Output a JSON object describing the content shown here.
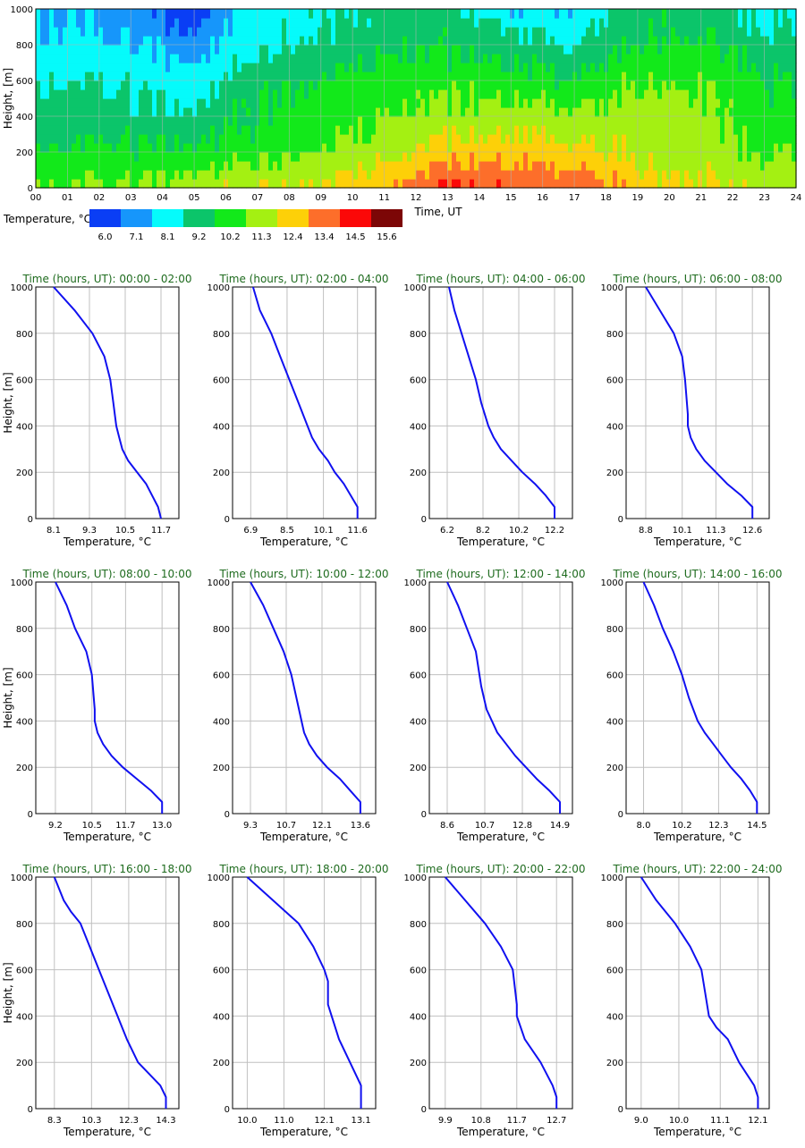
{
  "heatmap": {
    "ylabel": "Height, [m]",
    "xlabel": "Time, UT",
    "y_ticks": [
      "0",
      "200",
      "400",
      "600",
      "800",
      "1000"
    ],
    "x_ticks": [
      "00",
      "01",
      "02",
      "03",
      "04",
      "05",
      "06",
      "07",
      "08",
      "09",
      "10",
      "11",
      "12",
      "13",
      "14",
      "15",
      "16",
      "17",
      "18",
      "19",
      "20",
      "21",
      "22",
      "23",
      "24"
    ],
    "legend_label": "Temperature, °C",
    "legend_values": [
      "6.0",
      "7.1",
      "8.1",
      "9.2",
      "10.2",
      "11.3",
      "12.4",
      "13.4",
      "14.5",
      "15.6"
    ],
    "colors": [
      "#0a3ef5",
      "#1696fb",
      "#05fbfb",
      "#0bc56a",
      "#12e91a",
      "#a4f012",
      "#fdd008",
      "#fd6e2a",
      "#fb0808",
      "#7c0606"
    ]
  },
  "profile_common": {
    "ylabel": "Height, [m]",
    "xlabel": "Temperature, °C",
    "y_ticks": [
      "0",
      "200",
      "400",
      "600",
      "800",
      "1000"
    ],
    "title_prefix": "Time (hours, UT): "
  },
  "chart_data": [
    {
      "type": "heatmap",
      "title": "",
      "xlabel": "Time, UT",
      "ylabel": "Height, [m]",
      "xlim": [
        0,
        24
      ],
      "ylim": [
        0,
        1000
      ],
      "colorbar_label": "Temperature, °C",
      "colorbar_levels": [
        6.0,
        7.1,
        8.1,
        9.2,
        10.2,
        11.3,
        12.4,
        13.4,
        14.5,
        15.6
      ],
      "times": [
        "00",
        "02",
        "04",
        "06",
        "08",
        "10",
        "12",
        "14",
        "16",
        "18",
        "20",
        "22"
      ],
      "heights": [
        0,
        100,
        200,
        300,
        400,
        500,
        600,
        700,
        800,
        900,
        1000
      ],
      "values": [
        [
          11.5,
          11.0,
          10.5,
          10.0,
          9.8,
          9.6,
          9.2,
          8.8,
          8.4,
          8.2,
          8.2
        ],
        [
          11.5,
          11.0,
          10.5,
          10.0,
          9.6,
          9.3,
          9.0,
          8.6,
          8.2,
          7.8,
          7.5
        ],
        [
          12.0,
          11.3,
          10.5,
          9.8,
          9.4,
          9.0,
          8.6,
          8.1,
          7.6,
          7.0,
          6.6
        ],
        [
          12.4,
          11.6,
          11.0,
          10.5,
          10.3,
          10.3,
          10.0,
          9.4,
          9.0,
          8.8,
          8.8
        ],
        [
          12.8,
          12.0,
          11.4,
          11.0,
          10.7,
          10.6,
          10.4,
          9.8,
          9.5,
          9.3,
          9.3
        ],
        [
          13.3,
          12.6,
          12.0,
          11.6,
          11.3,
          11.0,
          10.7,
          10.3,
          9.9,
          9.6,
          9.4
        ],
        [
          14.6,
          13.6,
          12.9,
          12.2,
          11.6,
          11.2,
          10.9,
          10.4,
          10.0,
          9.8,
          9.6
        ],
        [
          14.4,
          13.6,
          13.0,
          12.4,
          11.9,
          11.3,
          10.8,
          10.2,
          9.6,
          9.3,
          8.0
        ],
        [
          14.2,
          13.5,
          12.8,
          12.2,
          11.6,
          11.0,
          10.4,
          9.8,
          9.2,
          8.8,
          8.3
        ],
        [
          13.0,
          12.6,
          12.1,
          12.0,
          11.9,
          11.7,
          11.2,
          10.7,
          10.3,
          10.1,
          10.0
        ],
        [
          12.6,
          12.3,
          11.8,
          11.7,
          11.6,
          11.5,
          11.2,
          10.9,
          10.4,
          10.0,
          9.9
        ],
        [
          12.0,
          11.6,
          11.2,
          10.9,
          10.6,
          10.5,
          10.3,
          9.9,
          9.5,
          9.2,
          9.0
        ]
      ]
    },
    {
      "type": "line",
      "title": "Time (hours, UT): 00:00 - 02:00",
      "xlabel": "Temperature, °C",
      "ylabel": "Height, [m]",
      "x_ticks": [
        8.1,
        9.3,
        10.5,
        11.7
      ],
      "xlim": [
        7.5,
        12.3
      ],
      "ylim": [
        0,
        1000
      ],
      "series": [
        {
          "x": [
            11.7,
            11.6,
            11.4,
            11.2,
            10.9,
            10.6,
            10.4,
            10.3,
            10.2,
            10.1,
            10.0,
            9.8,
            9.4,
            8.8,
            8.1
          ],
          "y": [
            0,
            50,
            100,
            150,
            200,
            250,
            300,
            350,
            400,
            500,
            600,
            700,
            800,
            900,
            1000
          ]
        }
      ]
    },
    {
      "type": "line",
      "title": "Time (hours, UT): 02:00 - 04:00",
      "xlabel": "Temperature, °C",
      "ylabel": "Height, [m]",
      "x_ticks": [
        6.9,
        8.5,
        10.1,
        11.6
      ],
      "xlim": [
        6.1,
        12.4
      ],
      "ylim": [
        0,
        1000
      ],
      "series": [
        {
          "x": [
            11.6,
            11.6,
            11.3,
            11.0,
            10.6,
            10.3,
            9.9,
            9.6,
            9.4,
            9.0,
            8.6,
            8.2,
            7.8,
            7.3,
            7.0
          ],
          "y": [
            0,
            50,
            100,
            150,
            200,
            250,
            300,
            350,
            400,
            500,
            600,
            700,
            800,
            900,
            1000
          ]
        }
      ]
    },
    {
      "type": "line",
      "title": "Time (hours, UT): 04:00 - 06:00",
      "xlabel": "Temperature, °C",
      "ylabel": "Height, [m]",
      "x_ticks": [
        6.2,
        8.2,
        10.2,
        12.2
      ],
      "xlim": [
        5.2,
        13.2
      ],
      "ylim": [
        0,
        1000
      ],
      "series": [
        {
          "x": [
            12.2,
            12.2,
            11.7,
            11.1,
            10.4,
            9.8,
            9.2,
            8.8,
            8.5,
            8.1,
            7.8,
            7.4,
            7.0,
            6.6,
            6.3
          ],
          "y": [
            0,
            50,
            100,
            150,
            200,
            250,
            300,
            350,
            400,
            500,
            600,
            700,
            800,
            900,
            1000
          ]
        }
      ]
    },
    {
      "type": "line",
      "title": "Time (hours, UT): 06:00 - 08:00",
      "xlabel": "Temperature, °C",
      "ylabel": "Height, [m]",
      "x_ticks": [
        8.8,
        10.1,
        11.3,
        12.6
      ],
      "xlim": [
        8.1,
        13.2
      ],
      "ylim": [
        0,
        1000
      ],
      "series": [
        {
          "x": [
            12.6,
            12.6,
            12.2,
            11.7,
            11.3,
            10.9,
            10.6,
            10.4,
            10.3,
            10.3,
            10.2,
            10.1,
            9.8,
            9.3,
            8.8
          ],
          "y": [
            0,
            50,
            100,
            150,
            200,
            250,
            300,
            350,
            400,
            450,
            600,
            700,
            800,
            900,
            1000
          ]
        }
      ]
    },
    {
      "type": "line",
      "title": "Time (hours, UT): 08:00 - 10:00",
      "xlabel": "Temperature, °C",
      "ylabel": "Height, [m]",
      "x_ticks": [
        9.2,
        10.5,
        11.7,
        13.0
      ],
      "xlim": [
        8.5,
        13.6
      ],
      "ylim": [
        0,
        1000
      ],
      "series": [
        {
          "x": [
            13.0,
            13.0,
            12.6,
            12.1,
            11.6,
            11.2,
            10.9,
            10.7,
            10.6,
            10.6,
            10.5,
            10.3,
            9.9,
            9.6,
            9.2
          ],
          "y": [
            0,
            50,
            100,
            150,
            200,
            250,
            300,
            350,
            400,
            450,
            600,
            700,
            800,
            900,
            1000
          ]
        }
      ]
    },
    {
      "type": "line",
      "title": "Time (hours, UT): 10:00 - 12:00",
      "xlabel": "Temperature, °C",
      "ylabel": "Height, [m]",
      "x_ticks": [
        9.3,
        10.7,
        12.1,
        13.6
      ],
      "xlim": [
        8.6,
        14.2
      ],
      "ylim": [
        0,
        1000
      ],
      "series": [
        {
          "x": [
            13.6,
            13.6,
            13.2,
            12.8,
            12.3,
            11.9,
            11.6,
            11.4,
            11.3,
            11.1,
            10.9,
            10.6,
            10.2,
            9.8,
            9.3
          ],
          "y": [
            0,
            50,
            100,
            150,
            200,
            250,
            300,
            350,
            400,
            500,
            600,
            700,
            800,
            900,
            1000
          ]
        }
      ]
    },
    {
      "type": "line",
      "title": "Time (hours, UT): 12:00 - 14:00",
      "xlabel": "Temperature, °C",
      "ylabel": "Height, [m]",
      "x_ticks": [
        8.6,
        10.7,
        12.8,
        14.9
      ],
      "xlim": [
        7.6,
        15.6
      ],
      "ylim": [
        0,
        1000
      ],
      "series": [
        {
          "x": [
            14.9,
            14.9,
            14.3,
            13.6,
            13.0,
            12.4,
            11.9,
            11.4,
            11.1,
            10.8,
            10.5,
            10.2,
            9.7,
            9.2,
            8.6
          ],
          "y": [
            0,
            50,
            100,
            150,
            200,
            250,
            300,
            350,
            400,
            450,
            550,
            700,
            800,
            900,
            1000
          ]
        }
      ]
    },
    {
      "type": "line",
      "title": "Time (hours, UT): 14:00 - 16:00",
      "xlabel": "Temperature, °C",
      "ylabel": "Height, [m]",
      "x_ticks": [
        8.0,
        10.2,
        12.3,
        14.5
      ],
      "xlim": [
        7.0,
        15.2
      ],
      "ylim": [
        0,
        1000
      ],
      "series": [
        {
          "x": [
            14.5,
            14.5,
            14.1,
            13.6,
            13.0,
            12.5,
            12.0,
            11.5,
            11.1,
            10.6,
            10.2,
            9.7,
            9.1,
            8.6,
            8.0
          ],
          "y": [
            0,
            50,
            100,
            150,
            200,
            250,
            300,
            350,
            400,
            500,
            600,
            700,
            800,
            900,
            1000
          ]
        }
      ]
    },
    {
      "type": "line",
      "title": "Time (hours, UT): 16:00 - 18:00",
      "xlabel": "Temperature, °C",
      "ylabel": "Height, [m]",
      "x_ticks": [
        8.3,
        10.3,
        12.3,
        14.3
      ],
      "xlim": [
        7.3,
        15.0
      ],
      "ylim": [
        0,
        1000
      ],
      "series": [
        {
          "x": [
            14.3,
            14.3,
            14.0,
            13.4,
            12.8,
            12.2,
            11.7,
            11.2,
            10.7,
            10.2,
            9.7,
            9.2,
            8.8,
            8.3
          ],
          "y": [
            0,
            50,
            100,
            150,
            200,
            300,
            400,
            500,
            600,
            700,
            800,
            850,
            900,
            1000
          ]
        }
      ]
    },
    {
      "type": "line",
      "title": "Time (hours, UT): 18:00 - 20:00",
      "xlabel": "Temperature, °C",
      "ylabel": "Height, [m]",
      "x_ticks": [
        10.0,
        11.0,
        12.1,
        13.1
      ],
      "xlim": [
        9.6,
        13.5
      ],
      "ylim": [
        0,
        1000
      ],
      "series": [
        {
          "x": [
            13.1,
            13.1,
            13.1,
            12.8,
            12.5,
            12.3,
            12.2,
            12.2,
            12.1,
            11.8,
            11.4,
            10.7,
            10.0
          ],
          "y": [
            0,
            50,
            100,
            200,
            300,
            400,
            450,
            550,
            600,
            700,
            800,
            900,
            1000
          ]
        }
      ]
    },
    {
      "type": "line",
      "title": "Time (hours, UT): 20:00 - 22:00",
      "xlabel": "Temperature, °C",
      "ylabel": "Height, [m]",
      "x_ticks": [
        9.9,
        10.8,
        11.7,
        12.7
      ],
      "xlim": [
        9.5,
        13.1
      ],
      "ylim": [
        0,
        1000
      ],
      "series": [
        {
          "x": [
            12.7,
            12.7,
            12.6,
            12.3,
            11.9,
            11.7,
            11.7,
            11.6,
            11.3,
            10.9,
            10.4,
            9.9
          ],
          "y": [
            0,
            50,
            100,
            200,
            300,
            400,
            450,
            600,
            700,
            800,
            900,
            1000
          ]
        }
      ]
    },
    {
      "type": "line",
      "title": "Time (hours, UT): 22:00 - 24:00",
      "xlabel": "Temperature, °C",
      "ylabel": "Height, [m]",
      "x_ticks": [
        9.0,
        10.0,
        11.1,
        12.1
      ],
      "xlim": [
        8.6,
        12.4
      ],
      "ylim": [
        0,
        1000
      ],
      "series": [
        {
          "x": [
            12.1,
            12.1,
            12.0,
            11.6,
            11.3,
            11.0,
            10.8,
            10.7,
            10.6,
            10.3,
            9.9,
            9.4,
            9.0
          ],
          "y": [
            0,
            50,
            100,
            200,
            300,
            350,
            400,
            500,
            600,
            700,
            800,
            900,
            1000
          ]
        }
      ]
    }
  ]
}
